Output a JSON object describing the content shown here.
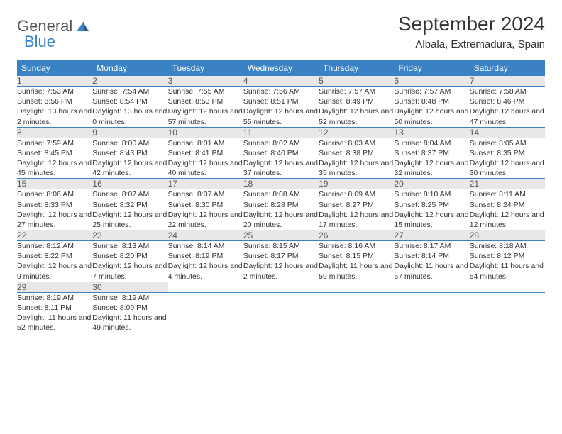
{
  "logo": {
    "text1": "General",
    "text2": "Blue"
  },
  "title": "September 2024",
  "location": "Albala, Extremadura, Spain",
  "colors": {
    "header_bg": "#3b82c4",
    "header_text": "#ffffff",
    "daynum_bg": "#e8e8e8",
    "daynum_text": "#555555",
    "body_bg": "#ffffff",
    "border": "#3b82c4"
  },
  "typography": {
    "title_fontsize": 28,
    "location_fontsize": 15,
    "header_fontsize": 12,
    "daynum_fontsize": 12,
    "cell_fontsize": 10.5
  },
  "weekdays": [
    "Sunday",
    "Monday",
    "Tuesday",
    "Wednesday",
    "Thursday",
    "Friday",
    "Saturday"
  ],
  "weeks": [
    [
      {
        "day": "1",
        "sunrise": "Sunrise: 7:53 AM",
        "sunset": "Sunset: 8:56 PM",
        "daylight": "Daylight: 13 hours and 2 minutes."
      },
      {
        "day": "2",
        "sunrise": "Sunrise: 7:54 AM",
        "sunset": "Sunset: 8:54 PM",
        "daylight": "Daylight: 13 hours and 0 minutes."
      },
      {
        "day": "3",
        "sunrise": "Sunrise: 7:55 AM",
        "sunset": "Sunset: 8:53 PM",
        "daylight": "Daylight: 12 hours and 57 minutes."
      },
      {
        "day": "4",
        "sunrise": "Sunrise: 7:56 AM",
        "sunset": "Sunset: 8:51 PM",
        "daylight": "Daylight: 12 hours and 55 minutes."
      },
      {
        "day": "5",
        "sunrise": "Sunrise: 7:57 AM",
        "sunset": "Sunset: 8:49 PM",
        "daylight": "Daylight: 12 hours and 52 minutes."
      },
      {
        "day": "6",
        "sunrise": "Sunrise: 7:57 AM",
        "sunset": "Sunset: 8:48 PM",
        "daylight": "Daylight: 12 hours and 50 minutes."
      },
      {
        "day": "7",
        "sunrise": "Sunrise: 7:58 AM",
        "sunset": "Sunset: 8:46 PM",
        "daylight": "Daylight: 12 hours and 47 minutes."
      }
    ],
    [
      {
        "day": "8",
        "sunrise": "Sunrise: 7:59 AM",
        "sunset": "Sunset: 8:45 PM",
        "daylight": "Daylight: 12 hours and 45 minutes."
      },
      {
        "day": "9",
        "sunrise": "Sunrise: 8:00 AM",
        "sunset": "Sunset: 8:43 PM",
        "daylight": "Daylight: 12 hours and 42 minutes."
      },
      {
        "day": "10",
        "sunrise": "Sunrise: 8:01 AM",
        "sunset": "Sunset: 8:41 PM",
        "daylight": "Daylight: 12 hours and 40 minutes."
      },
      {
        "day": "11",
        "sunrise": "Sunrise: 8:02 AM",
        "sunset": "Sunset: 8:40 PM",
        "daylight": "Daylight: 12 hours and 37 minutes."
      },
      {
        "day": "12",
        "sunrise": "Sunrise: 8:03 AM",
        "sunset": "Sunset: 8:38 PM",
        "daylight": "Daylight: 12 hours and 35 minutes."
      },
      {
        "day": "13",
        "sunrise": "Sunrise: 8:04 AM",
        "sunset": "Sunset: 8:37 PM",
        "daylight": "Daylight: 12 hours and 32 minutes."
      },
      {
        "day": "14",
        "sunrise": "Sunrise: 8:05 AM",
        "sunset": "Sunset: 8:35 PM",
        "daylight": "Daylight: 12 hours and 30 minutes."
      }
    ],
    [
      {
        "day": "15",
        "sunrise": "Sunrise: 8:06 AM",
        "sunset": "Sunset: 8:33 PM",
        "daylight": "Daylight: 12 hours and 27 minutes."
      },
      {
        "day": "16",
        "sunrise": "Sunrise: 8:07 AM",
        "sunset": "Sunset: 8:32 PM",
        "daylight": "Daylight: 12 hours and 25 minutes."
      },
      {
        "day": "17",
        "sunrise": "Sunrise: 8:07 AM",
        "sunset": "Sunset: 8:30 PM",
        "daylight": "Daylight: 12 hours and 22 minutes."
      },
      {
        "day": "18",
        "sunrise": "Sunrise: 8:08 AM",
        "sunset": "Sunset: 8:28 PM",
        "daylight": "Daylight: 12 hours and 20 minutes."
      },
      {
        "day": "19",
        "sunrise": "Sunrise: 8:09 AM",
        "sunset": "Sunset: 8:27 PM",
        "daylight": "Daylight: 12 hours and 17 minutes."
      },
      {
        "day": "20",
        "sunrise": "Sunrise: 8:10 AM",
        "sunset": "Sunset: 8:25 PM",
        "daylight": "Daylight: 12 hours and 15 minutes."
      },
      {
        "day": "21",
        "sunrise": "Sunrise: 8:11 AM",
        "sunset": "Sunset: 8:24 PM",
        "daylight": "Daylight: 12 hours and 12 minutes."
      }
    ],
    [
      {
        "day": "22",
        "sunrise": "Sunrise: 8:12 AM",
        "sunset": "Sunset: 8:22 PM",
        "daylight": "Daylight: 12 hours and 9 minutes."
      },
      {
        "day": "23",
        "sunrise": "Sunrise: 8:13 AM",
        "sunset": "Sunset: 8:20 PM",
        "daylight": "Daylight: 12 hours and 7 minutes."
      },
      {
        "day": "24",
        "sunrise": "Sunrise: 8:14 AM",
        "sunset": "Sunset: 8:19 PM",
        "daylight": "Daylight: 12 hours and 4 minutes."
      },
      {
        "day": "25",
        "sunrise": "Sunrise: 8:15 AM",
        "sunset": "Sunset: 8:17 PM",
        "daylight": "Daylight: 12 hours and 2 minutes."
      },
      {
        "day": "26",
        "sunrise": "Sunrise: 8:16 AM",
        "sunset": "Sunset: 8:15 PM",
        "daylight": "Daylight: 11 hours and 59 minutes."
      },
      {
        "day": "27",
        "sunrise": "Sunrise: 8:17 AM",
        "sunset": "Sunset: 8:14 PM",
        "daylight": "Daylight: 11 hours and 57 minutes."
      },
      {
        "day": "28",
        "sunrise": "Sunrise: 8:18 AM",
        "sunset": "Sunset: 8:12 PM",
        "daylight": "Daylight: 11 hours and 54 minutes."
      }
    ],
    [
      {
        "day": "29",
        "sunrise": "Sunrise: 8:19 AM",
        "sunset": "Sunset: 8:11 PM",
        "daylight": "Daylight: 11 hours and 52 minutes."
      },
      {
        "day": "30",
        "sunrise": "Sunrise: 8:19 AM",
        "sunset": "Sunset: 8:09 PM",
        "daylight": "Daylight: 11 hours and 49 minutes."
      },
      null,
      null,
      null,
      null,
      null
    ]
  ]
}
